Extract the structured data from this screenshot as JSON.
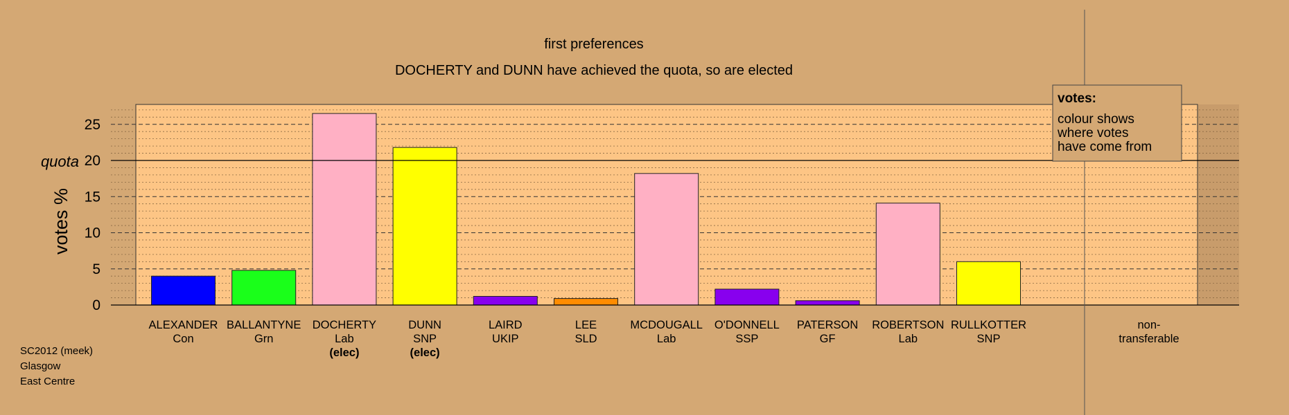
{
  "chart_data": {
    "type": "bar",
    "title": "first preferences",
    "subtitle": "DOCHERTY and DUNN have achieved the quota, so are elected",
    "ylabel": "votes %",
    "ylim": [
      0,
      27.9
    ],
    "yticks": [
      0,
      5,
      10,
      15,
      20,
      25
    ],
    "quota": 20,
    "quota_label": "quota",
    "grid": true,
    "categories": [
      "ALEXANDER",
      "BALLANTYNE",
      "DOCHERTY",
      "DUNN",
      "LAIRD",
      "LEE",
      "MCDOUGALL",
      "O'DONNELL",
      "PATERSON",
      "ROBERTSON",
      "RULLKOTTER"
    ],
    "parties": [
      "Con",
      "Grn",
      "Lab",
      "SNP",
      "UKIP",
      "SLD",
      "Lab",
      "SSP",
      "GF",
      "Lab",
      "SNP"
    ],
    "elected": [
      "",
      "",
      "(elec)",
      "(elec)",
      "",
      "",
      "",
      "",
      "",
      "",
      ""
    ],
    "values": [
      4.0,
      4.8,
      26.5,
      21.8,
      1.2,
      0.9,
      18.2,
      2.2,
      0.6,
      14.1,
      6.0
    ],
    "colors": [
      "#0000ff",
      "#1aff1a",
      "#ffb0c4",
      "#ffff00",
      "#8800ee",
      "#ff8c00",
      "#ffb0c4",
      "#8800ee",
      "#8800ee",
      "#ffb0c4",
      "#ffff00"
    ],
    "nontransferable_label": [
      "non-",
      "transferable"
    ],
    "legend": {
      "title": "votes:",
      "lines": [
        "colour shows",
        "where votes",
        "have come from"
      ],
      "position": "top-right"
    }
  },
  "footer": {
    "line1": "SC2012 (meek)",
    "line2": "Glasgow",
    "line3": "East Centre"
  },
  "colors": {
    "background": "#d4a874",
    "plot_panel": "#fdc585",
    "right_band": "#c89c6b"
  }
}
